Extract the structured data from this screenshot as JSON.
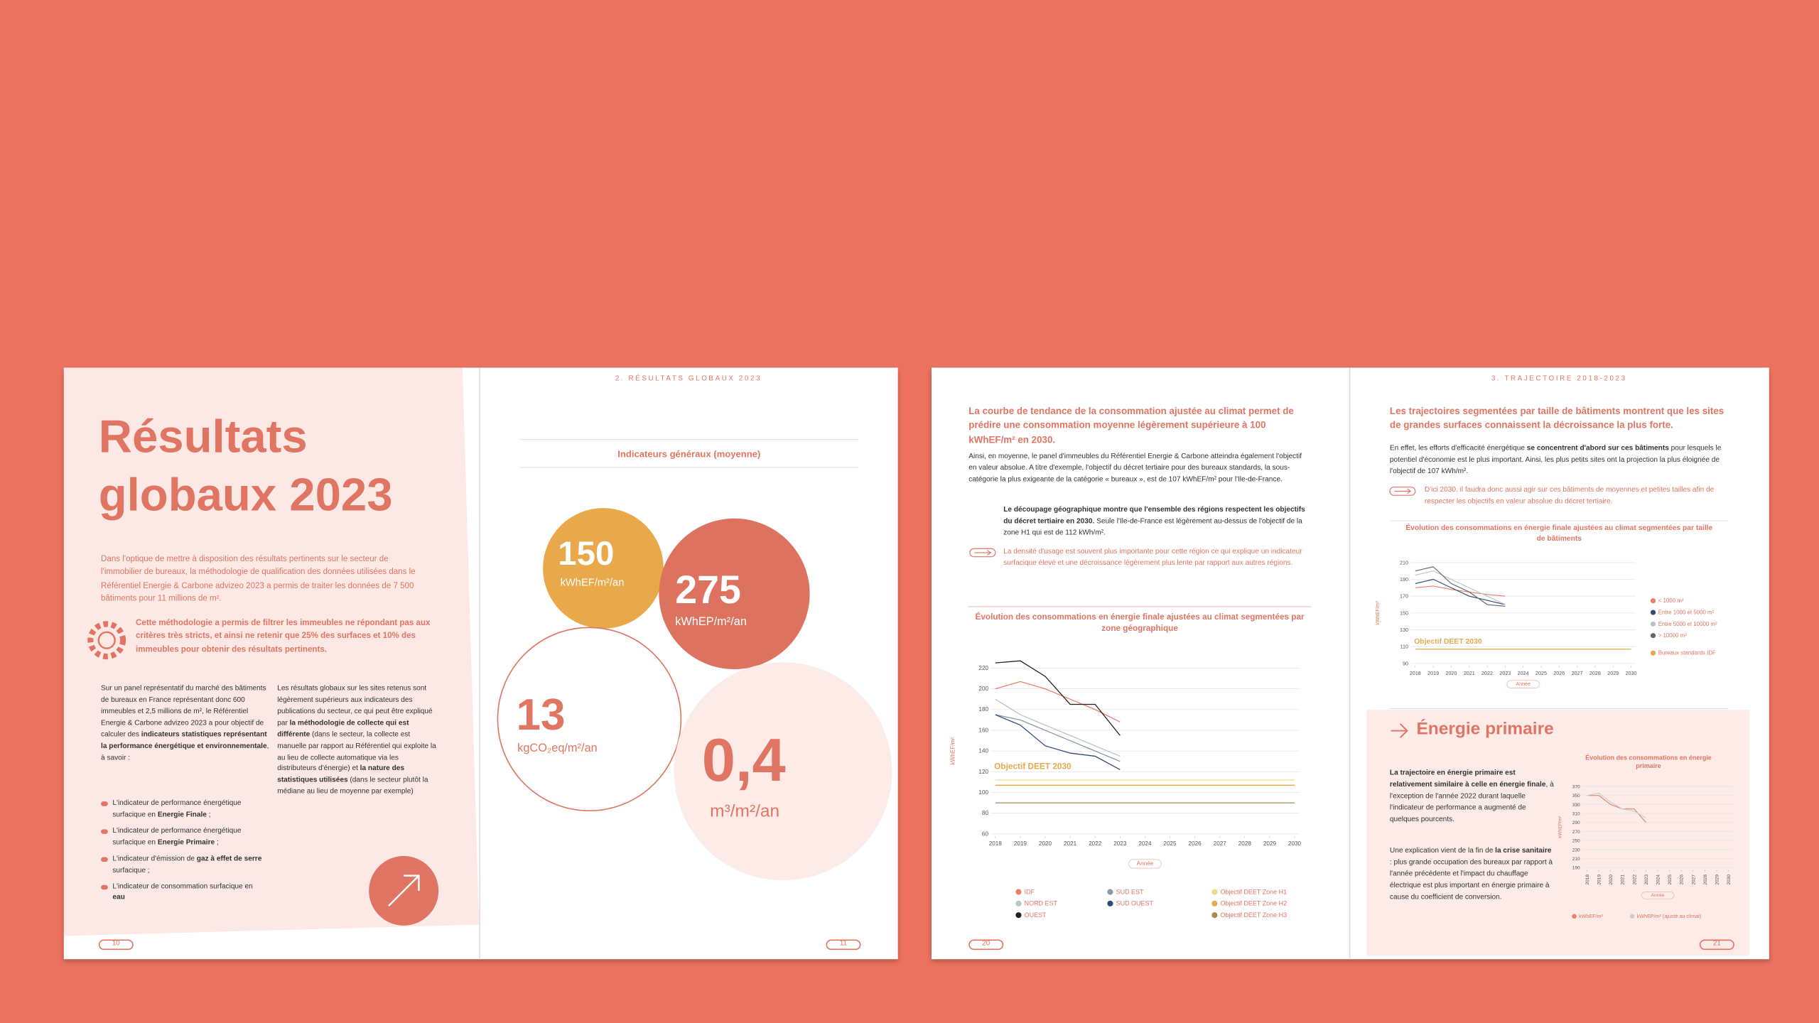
{
  "pages": [
    {
      "number": 10,
      "title_lines": [
        "Résultats",
        "globaux 2023"
      ],
      "intro": "Dans l'optique de mettre à disposition des résultats pertinents sur le secteur de l'immobilier de bureaux, la méthodologie de qualification des données utilisées dans le Référentiel Energie & Carbone advizeo 2023 a permis de traiter les données de 7 500 bâtiments pour 11 millions de m².",
      "highlight": "Cette méthodologie a permis de filtrer les immeubles ne répondant pas aux critères très stricts, et ainsi ne retenir que 25% des surfaces et 10% des immeubles pour obtenir des résultats pertinents.",
      "column_1": [
        "Sur un panel représentatif du marché des bâtiments de bureaux en France représentant donc 600 immeubles et 2,5 millions de m², le Référentiel Energie & Carbone advizeo 2023 a pour objectif de calculer des ",
        {
          "b": "indicateurs statistiques représentant la performance énergétique et environnementale"
        },
        ", à savoir :"
      ],
      "bullets": [
        [
          "L'indicateur de performance énergétique surfacique en ",
          {
            "b": "Energie Finale"
          },
          " ;"
        ],
        [
          "L'indicateur de performance énergétique surfacique en ",
          {
            "b": "Energie Primaire"
          },
          " ;"
        ],
        [
          "L'indicateur d'émission de ",
          {
            "b": "gaz à effet de serre"
          },
          " surfacique ;"
        ],
        [
          "L'indicateur de consommation surfacique en ",
          {
            "b": "eau"
          }
        ]
      ],
      "column_2": [
        "Les résultats globaux sur les sites retenus sont légèrement supérieurs aux indicateurs des publications du secteur, ce qui peut être expliqué par ",
        {
          "b": "la méthodologie de collecte qui est différente"
        },
        " (dans le secteur, la collecte est manuelle par rapport au Référentiel qui exploite la au lieu de collecte automatique via les distributeurs d'énergie) et ",
        {
          "b": "la nature des statistiques utilisées"
        },
        " (dans le secteur plutôt la médiane au lieu de moyenne par exemple)"
      ]
    },
    {
      "number": 11,
      "header": "2. RÉSULTATS GLOBAUX 2023",
      "subtitle": "Indicateurs généraux (moyenne)",
      "indicators": [
        {
          "value": 150,
          "unit": "kWhEF/m²/an"
        },
        {
          "value": 275,
          "unit": "kWhEP/m²/an"
        },
        {
          "value": 13,
          "unit": "kgCO₂eq/m²/an"
        },
        {
          "value": 0.4,
          "label": "0,4",
          "unit": "m³/m²/an"
        }
      ]
    },
    {
      "number": 20,
      "lead": "La courbe de tendance de la consommation ajustée au climat permet de prédire une consommation moyenne légèrement supérieure à 100 kWhEF/m² en 2030.",
      "paragraph": "Ainsi, en moyenne, le panel d'immeubles du Référentiel Energie & Carbone atteindra également l'objectif en valeur absolue. A titre d'exemple, l'objectif du décret tertiaire pour des bureaux standards, la sous-catégorie la plus exigeante de la catégorie « bureaux », est de 107 kWhEF/m² pour l'Ile-de-France.",
      "paragraph_2": [
        {
          "b": "Le découpage géographique montre que l'ensemble des régions respectent les objectifs du décret tertiaire en 2030."
        },
        " Seule l'Ile-de-France est légèrement au-dessus de l'objectif de la zone H1 qui est de 112 kWh/m²."
      ],
      "note": "La densité d'usage est souvent plus importante pour cette région ce qui explique un indicateur surfacique élevé et une décroissance légèrement plus lente par rapport aux autres régions.",
      "chart": {
        "type": "line",
        "title": "Évolution des consommations en énergie finale ajustées au climat segmentées par zone géographique",
        "y_label": "kWhEF/m²",
        "x_label": "Année",
        "annotation": "Objectif DEET 2030",
        "x": [
          2018,
          2019,
          2020,
          2021,
          2022,
          2023,
          2024,
          2025,
          2026,
          2027,
          2028,
          2029,
          2030
        ],
        "xlim": [
          2018,
          2030
        ],
        "xticks": [
          2018,
          2019,
          2020,
          2021,
          2022,
          2023,
          2024,
          2025,
          2026,
          2027,
          2028,
          2029,
          2030
        ],
        "ylim": [
          60,
          220
        ],
        "yticks": [
          60,
          80,
          100,
          120,
          140,
          160,
          180,
          200,
          220
        ],
        "grid": true,
        "series": [
          {
            "name": "IDF",
            "color": "#e8806a",
            "values": [
              200,
              207,
              200,
              190,
              180,
              168,
              null,
              null,
              null,
              null,
              null,
              null,
              null
            ]
          },
          {
            "name": "NORD EST",
            "color": "#b9c4c7",
            "values": [
              190,
              175,
              165,
              155,
              145,
              135,
              null,
              null,
              null,
              null,
              null,
              null,
              null
            ]
          },
          {
            "name": "OUEST",
            "color": "#222222",
            "values": [
              225,
              227,
              212,
              185,
              185,
              155,
              null,
              null,
              null,
              null,
              null,
              null,
              null
            ]
          },
          {
            "name": "SUD EST",
            "color": "#8a9aa8",
            "values": [
              175,
              170,
              160,
              150,
              140,
              130,
              null,
              null,
              null,
              null,
              null,
              null,
              null
            ]
          },
          {
            "name": "SUD OUEST",
            "color": "#2f4a7a",
            "values": [
              175,
              165,
              145,
              138,
              135,
              122,
              null,
              null,
              null,
              null,
              null,
              null,
              null
            ]
          },
          {
            "name": "Objectif DEET Zone H1",
            "color": "#f2d98a",
            "values": [
              112,
              112,
              112,
              112,
              112,
              112,
              112,
              112,
              112,
              112,
              112,
              112,
              112
            ]
          },
          {
            "name": "Objectif DEET Zone H2",
            "color": "#e8a94a",
            "values": [
              107,
              107,
              107,
              107,
              107,
              107,
              107,
              107,
              107,
              107,
              107,
              107,
              107
            ]
          },
          {
            "name": "Objectif DEET Zone H3",
            "color": "#a88a50",
            "values": [
              90,
              90,
              90,
              90,
              90,
              90,
              90,
              90,
              90,
              90,
              90,
              90,
              90
            ]
          }
        ]
      }
    },
    {
      "number": 21,
      "header": "3. TRAJECTOIRE 2018-2023",
      "lead": "Les trajectoires segmentées par taille de bâtiments montrent que les sites de grandes surfaces connaissent la décroissance la plus forte.",
      "paragraph": [
        "En effet, les efforts d'efficacité énergétique ",
        {
          "b": "se concentrent d'abord sur ces bâtiments"
        },
        " pour lesquels le potentiel d'économie est le plus important. Ainsi, les plus petits sites ont la projection la plus éloignée de l'objectif de 107 kWh/m²."
      ],
      "note": "D'ici 2030, il faudra donc aussi agir sur ces bâtiments de moyennes et petites tailles afin de respecter les objectifs en valeur absolue du décret tertiaire.",
      "chart": {
        "type": "line",
        "title": "Évolution des consommations en énergie finale ajustées au climat segmentées par taille de bâtiments",
        "y_label": "kWhEF/m²",
        "x_label": "Année",
        "annotation": "Objectif DEET 2030",
        "x": [
          2018,
          2019,
          2020,
          2021,
          2022,
          2023,
          2024,
          2025,
          2026,
          2027,
          2028,
          2029,
          2030
        ],
        "xlim": [
          2018,
          2030
        ],
        "xticks": [
          2018,
          2019,
          2020,
          2021,
          2022,
          2023,
          2024,
          2025,
          2026,
          2027,
          2028,
          2029,
          2030
        ],
        "ylim": [
          90,
          210
        ],
        "yticks": [
          90,
          110,
          130,
          150,
          170,
          190,
          210
        ],
        "grid": true,
        "series": [
          {
            "name": "< 1000 m²",
            "color": "#e8806a",
            "values": [
              180,
              182,
              178,
              175,
              172,
              170,
              null,
              null,
              null,
              null,
              null,
              null,
              null
            ]
          },
          {
            "name": "Entre 1000 et 5000 m²",
            "color": "#2f4a7a",
            "values": [
              185,
              190,
              180,
              170,
              165,
              160,
              null,
              null,
              null,
              null,
              null,
              null,
              null
            ]
          },
          {
            "name": "Entre 5000 et 10000 m²",
            "color": "#b9c4c7",
            "values": [
              195,
              200,
              190,
              180,
              170,
              160,
              null,
              null,
              null,
              null,
              null,
              null,
              null
            ]
          },
          {
            "name": "> 10000 m²",
            "color": "#666666",
            "values": [
              200,
              205,
              185,
              175,
              160,
              158,
              null,
              null,
              null,
              null,
              null,
              null,
              null
            ]
          },
          {
            "name": "Bureaux standards IDF",
            "color": "#e8a94a",
            "values": [
              107,
              107,
              107,
              107,
              107,
              107,
              107,
              107,
              107,
              107,
              107,
              107,
              107
            ]
          }
        ]
      },
      "section_title": "Énergie primaire",
      "section_paragraphs": [
        [
          {
            "b": "La trajectoire en énergie primaire est relativement similaire à celle en énergie finale"
          },
          ", à l'exception de l'année 2022 durant laquelle l'indicateur de performance a augmenté de quelques pourcents."
        ],
        [
          "Une explication vient de la fin de ",
          {
            "b": "la crise sanitaire"
          },
          " : plus grande occupation des bureaux par rapport à l'année précédente et l'impact du chauffage électrique est plus important en énergie primaire à cause du coefficient de conversion."
        ]
      ],
      "section_chart": {
        "type": "line",
        "title": "Évolution des consommations en énergie primaire",
        "y_label": "kWhEP/m²",
        "x_label": "Année",
        "x": [
          2018,
          2019,
          2020,
          2021,
          2022,
          2023,
          2024,
          2025,
          2026,
          2027,
          2028,
          2029,
          2030
        ],
        "xlim": [
          2018,
          2030
        ],
        "xticks": [
          2018,
          2019,
          2020,
          2021,
          2022,
          2023,
          2024,
          2025,
          2026,
          2027,
          2028,
          2029,
          2030
        ],
        "ylim": [
          190,
          370
        ],
        "yticks": [
          190,
          210,
          230,
          250,
          270,
          290,
          310,
          330,
          350,
          370
        ],
        "grid": true,
        "series": [
          {
            "name": "kWhEF/m²",
            "color": "#e8806a",
            "values": [
              350,
              350,
              330,
              320,
              320,
              290,
              null,
              null,
              null,
              null,
              null,
              null,
              null
            ]
          },
          {
            "name": "kWhEP/m² (ajusté au climat)",
            "color": "#c8cfd2",
            "values": [
              350,
              355,
              335,
              320,
              315,
              300,
              null,
              null,
              null,
              null,
              null,
              null,
              null
            ]
          }
        ]
      }
    }
  ]
}
